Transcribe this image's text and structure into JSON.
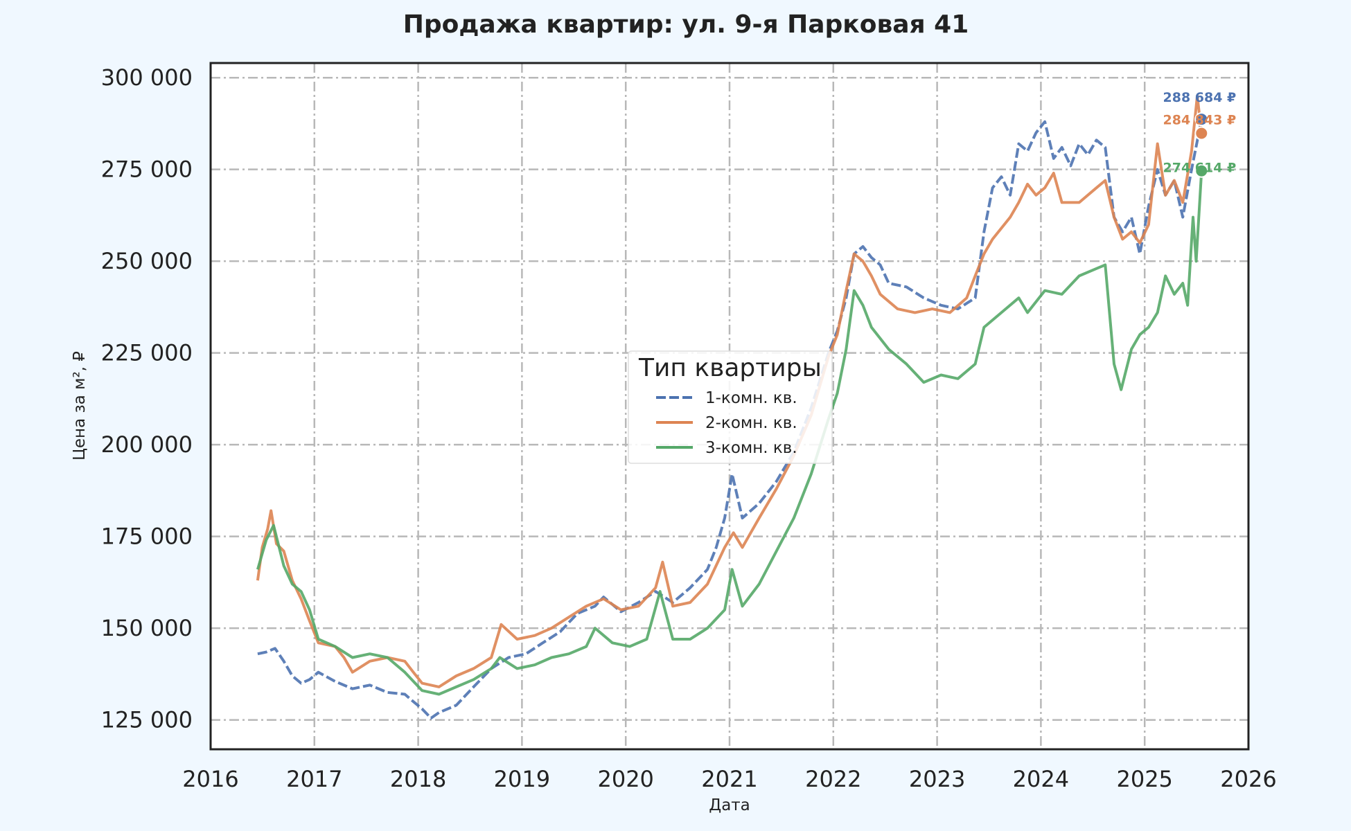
{
  "chart_data": {
    "type": "line",
    "title": "Продажа квартир: ул. 9-я Парковая 41",
    "xlabel": "Дата",
    "ylabel": "Цена за м², ₽",
    "xlim": [
      2016,
      2026
    ],
    "ylim": [
      117000,
      304000
    ],
    "x_ticks": [
      2016,
      2017,
      2018,
      2019,
      2020,
      2021,
      2022,
      2023,
      2024,
      2025,
      2026
    ],
    "x_tick_labels": [
      "2016",
      "2017",
      "2018",
      "2019",
      "2020",
      "2021",
      "2022",
      "2023",
      "2024",
      "2025",
      "2026"
    ],
    "y_ticks": [
      125000,
      150000,
      175000,
      200000,
      225000,
      250000,
      275000,
      300000
    ],
    "y_tick_labels": [
      "125 000",
      "150 000",
      "175 000",
      "200 000",
      "225 000",
      "250 000",
      "275 000",
      "300 000"
    ],
    "grid": true,
    "legend": {
      "title": "Тип квартиры",
      "position": "center"
    },
    "series": [
      {
        "name": "1-комн. кв.",
        "color": "#4c72b0",
        "dash": "dashed",
        "end_label": "288 684 ₽",
        "end_value": 288684,
        "points": [
          [
            "2016-06-15",
            143000
          ],
          [
            "2016-07-15",
            143500
          ],
          [
            "2016-08-15",
            144500
          ],
          [
            "2016-09-15",
            141000
          ],
          [
            "2016-10-15",
            137000
          ],
          [
            "2016-11-15",
            135000
          ],
          [
            "2016-12-15",
            136000
          ],
          [
            "2017-01-15",
            138000
          ],
          [
            "2017-03-15",
            135500
          ],
          [
            "2017-05-15",
            133500
          ],
          [
            "2017-07-15",
            134500
          ],
          [
            "2017-09-15",
            132500
          ],
          [
            "2017-11-15",
            132000
          ],
          [
            "2017-12-15",
            130000
          ],
          [
            "2018-01-15",
            128000
          ],
          [
            "2018-02-15",
            125500
          ],
          [
            "2018-03-15",
            127000
          ],
          [
            "2018-05-15",
            129000
          ],
          [
            "2018-07-15",
            134000
          ],
          [
            "2018-09-15",
            139000
          ],
          [
            "2018-11-15",
            142000
          ],
          [
            "2019-01-15",
            143000
          ],
          [
            "2019-03-15",
            146000
          ],
          [
            "2019-05-15",
            149000
          ],
          [
            "2019-07-15",
            154000
          ],
          [
            "2019-09-15",
            156000
          ],
          [
            "2019-10-15",
            158500
          ],
          [
            "2019-12-15",
            154500
          ],
          [
            "2020-02-15",
            157000
          ],
          [
            "2020-04-15",
            160000
          ],
          [
            "2020-06-15",
            157000
          ],
          [
            "2020-08-15",
            161000
          ],
          [
            "2020-10-15",
            166000
          ],
          [
            "2020-11-15",
            172000
          ],
          [
            "2020-12-15",
            180000
          ],
          [
            "2021-01-10",
            192000
          ],
          [
            "2021-02-15",
            180000
          ],
          [
            "2021-04-15",
            184000
          ],
          [
            "2021-06-15",
            190000
          ],
          [
            "2021-08-15",
            198000
          ],
          [
            "2021-10-15",
            210000
          ],
          [
            "2021-12-15",
            225000
          ],
          [
            "2022-01-15",
            231000
          ],
          [
            "2022-02-15",
            240000
          ],
          [
            "2022-03-15",
            252000
          ],
          [
            "2022-04-15",
            254000
          ],
          [
            "2022-05-15",
            251000
          ],
          [
            "2022-06-15",
            249000
          ],
          [
            "2022-07-15",
            244000
          ],
          [
            "2022-09-15",
            243000
          ],
          [
            "2022-11-15",
            240000
          ],
          [
            "2023-01-15",
            238000
          ],
          [
            "2023-03-15",
            237000
          ],
          [
            "2023-05-15",
            240000
          ],
          [
            "2023-06-15",
            258000
          ],
          [
            "2023-07-15",
            270000
          ],
          [
            "2023-08-15",
            273000
          ],
          [
            "2023-09-15",
            268000
          ],
          [
            "2023-10-15",
            282000
          ],
          [
            "2023-11-15",
            280000
          ],
          [
            "2023-12-15",
            285000
          ],
          [
            "2024-01-15",
            288000
          ],
          [
            "2024-02-15",
            278000
          ],
          [
            "2024-03-15",
            281000
          ],
          [
            "2024-04-15",
            276000
          ],
          [
            "2024-05-15",
            282000
          ],
          [
            "2024-06-15",
            279000
          ],
          [
            "2024-07-15",
            283000
          ],
          [
            "2024-08-15",
            281000
          ],
          [
            "2024-09-15",
            262000
          ],
          [
            "2024-10-15",
            258000
          ],
          [
            "2024-11-15",
            262000
          ],
          [
            "2024-12-15",
            252000
          ],
          [
            "2025-01-15",
            265000
          ],
          [
            "2025-02-15",
            275000
          ],
          [
            "2025-03-15",
            268000
          ],
          [
            "2025-04-15",
            272000
          ],
          [
            "2025-05-15",
            262000
          ],
          [
            "2025-06-15",
            275000
          ],
          [
            "2025-07-20",
            288684
          ]
        ]
      },
      {
        "name": "2-комн. кв.",
        "color": "#dd8452",
        "dash": "solid",
        "end_label": "284 843 ₽",
        "end_value": 284843,
        "points": [
          [
            "2016-06-15",
            163000
          ],
          [
            "2016-07-01",
            172000
          ],
          [
            "2016-07-20",
            177000
          ],
          [
            "2016-08-01",
            182000
          ],
          [
            "2016-08-20",
            173000
          ],
          [
            "2016-09-15",
            171000
          ],
          [
            "2016-10-15",
            163000
          ],
          [
            "2016-11-15",
            158000
          ],
          [
            "2016-12-15",
            152000
          ],
          [
            "2017-01-15",
            146000
          ],
          [
            "2017-03-15",
            145000
          ],
          [
            "2017-04-15",
            142000
          ],
          [
            "2017-05-15",
            138000
          ],
          [
            "2017-07-15",
            141000
          ],
          [
            "2017-09-15",
            142000
          ],
          [
            "2017-11-15",
            141000
          ],
          [
            "2017-12-15",
            138000
          ],
          [
            "2018-01-15",
            135000
          ],
          [
            "2018-03-15",
            134000
          ],
          [
            "2018-05-15",
            137000
          ],
          [
            "2018-07-15",
            139000
          ],
          [
            "2018-09-15",
            142000
          ],
          [
            "2018-10-20",
            151000
          ],
          [
            "2018-12-15",
            147000
          ],
          [
            "2019-02-15",
            148000
          ],
          [
            "2019-04-15",
            150000
          ],
          [
            "2019-06-15",
            153000
          ],
          [
            "2019-08-15",
            156000
          ],
          [
            "2019-10-15",
            158000
          ],
          [
            "2019-12-15",
            155000
          ],
          [
            "2020-02-15",
            156000
          ],
          [
            "2020-04-15",
            161000
          ],
          [
            "2020-05-10",
            168000
          ],
          [
            "2020-06-15",
            156000
          ],
          [
            "2020-08-15",
            157000
          ],
          [
            "2020-10-15",
            162000
          ],
          [
            "2020-12-15",
            172000
          ],
          [
            "2021-01-15",
            176000
          ],
          [
            "2021-02-15",
            172000
          ],
          [
            "2021-04-15",
            180000
          ],
          [
            "2021-06-15",
            188000
          ],
          [
            "2021-08-15",
            197000
          ],
          [
            "2021-10-15",
            208000
          ],
          [
            "2021-12-15",
            224000
          ],
          [
            "2022-01-15",
            230000
          ],
          [
            "2022-02-15",
            242000
          ],
          [
            "2022-03-15",
            252000
          ],
          [
            "2022-04-15",
            250000
          ],
          [
            "2022-05-15",
            246000
          ],
          [
            "2022-06-15",
            241000
          ],
          [
            "2022-08-15",
            237000
          ],
          [
            "2022-10-15",
            236000
          ],
          [
            "2022-12-15",
            237000
          ],
          [
            "2023-02-15",
            236000
          ],
          [
            "2023-04-15",
            240000
          ],
          [
            "2023-05-15",
            246000
          ],
          [
            "2023-06-15",
            252000
          ],
          [
            "2023-07-15",
            256000
          ],
          [
            "2023-09-15",
            262000
          ],
          [
            "2023-10-15",
            266000
          ],
          [
            "2023-11-15",
            271000
          ],
          [
            "2023-12-15",
            268000
          ],
          [
            "2024-01-15",
            270000
          ],
          [
            "2024-02-15",
            274000
          ],
          [
            "2024-03-15",
            266000
          ],
          [
            "2024-05-15",
            266000
          ],
          [
            "2024-07-15",
            270000
          ],
          [
            "2024-08-15",
            272000
          ],
          [
            "2024-09-15",
            262000
          ],
          [
            "2024-10-15",
            256000
          ],
          [
            "2024-11-15",
            258000
          ],
          [
            "2024-12-15",
            255000
          ],
          [
            "2025-01-15",
            260000
          ],
          [
            "2025-02-15",
            282000
          ],
          [
            "2025-03-15",
            268000
          ],
          [
            "2025-04-15",
            272000
          ],
          [
            "2025-05-15",
            266000
          ],
          [
            "2025-06-15",
            280000
          ],
          [
            "2025-07-05",
            295000
          ],
          [
            "2025-07-20",
            284843
          ]
        ]
      },
      {
        "name": "3-комн. кв.",
        "color": "#55a868",
        "dash": "solid",
        "end_label": "274 614 ₽",
        "end_value": 274614,
        "points": [
          [
            "2016-06-15",
            166000
          ],
          [
            "2016-07-15",
            174000
          ],
          [
            "2016-08-10",
            178000
          ],
          [
            "2016-09-15",
            167000
          ],
          [
            "2016-10-15",
            162000
          ],
          [
            "2016-11-15",
            160000
          ],
          [
            "2016-12-15",
            155000
          ],
          [
            "2017-01-15",
            147000
          ],
          [
            "2017-03-15",
            145000
          ],
          [
            "2017-05-15",
            142000
          ],
          [
            "2017-07-15",
            143000
          ],
          [
            "2017-09-15",
            142000
          ],
          [
            "2017-11-15",
            138000
          ],
          [
            "2018-01-15",
            133000
          ],
          [
            "2018-03-15",
            132000
          ],
          [
            "2018-05-15",
            134000
          ],
          [
            "2018-07-15",
            136000
          ],
          [
            "2018-09-15",
            139000
          ],
          [
            "2018-10-15",
            142000
          ],
          [
            "2018-12-15",
            139000
          ],
          [
            "2019-02-15",
            140000
          ],
          [
            "2019-04-15",
            142000
          ],
          [
            "2019-06-15",
            143000
          ],
          [
            "2019-08-15",
            145000
          ],
          [
            "2019-09-15",
            150000
          ],
          [
            "2019-11-15",
            146000
          ],
          [
            "2020-01-15",
            145000
          ],
          [
            "2020-03-15",
            147000
          ],
          [
            "2020-05-01",
            160000
          ],
          [
            "2020-06-15",
            147000
          ],
          [
            "2020-08-15",
            147000
          ],
          [
            "2020-10-15",
            150000
          ],
          [
            "2020-12-15",
            155000
          ],
          [
            "2021-01-10",
            166000
          ],
          [
            "2021-02-15",
            156000
          ],
          [
            "2021-04-15",
            162000
          ],
          [
            "2021-06-15",
            171000
          ],
          [
            "2021-08-15",
            180000
          ],
          [
            "2021-10-15",
            192000
          ],
          [
            "2021-12-15",
            207000
          ],
          [
            "2022-01-15",
            214000
          ],
          [
            "2022-02-15",
            226000
          ],
          [
            "2022-03-15",
            242000
          ],
          [
            "2022-04-15",
            238000
          ],
          [
            "2022-05-15",
            232000
          ],
          [
            "2022-07-15",
            226000
          ],
          [
            "2022-09-15",
            222000
          ],
          [
            "2022-11-15",
            217000
          ],
          [
            "2023-01-15",
            219000
          ],
          [
            "2023-03-15",
            218000
          ],
          [
            "2023-05-15",
            222000
          ],
          [
            "2023-06-15",
            232000
          ],
          [
            "2023-08-15",
            236000
          ],
          [
            "2023-10-15",
            240000
          ],
          [
            "2023-11-15",
            236000
          ],
          [
            "2024-01-15",
            242000
          ],
          [
            "2024-03-15",
            241000
          ],
          [
            "2024-05-15",
            246000
          ],
          [
            "2024-07-15",
            248000
          ],
          [
            "2024-08-15",
            249000
          ],
          [
            "2024-09-15",
            222000
          ],
          [
            "2024-10-10",
            215000
          ],
          [
            "2024-11-15",
            226000
          ],
          [
            "2024-12-15",
            230000
          ],
          [
            "2025-01-15",
            232000
          ],
          [
            "2025-02-15",
            236000
          ],
          [
            "2025-03-15",
            246000
          ],
          [
            "2025-04-15",
            241000
          ],
          [
            "2025-05-15",
            244000
          ],
          [
            "2025-06-01",
            238000
          ],
          [
            "2025-06-20",
            262000
          ],
          [
            "2025-07-01",
            250000
          ],
          [
            "2025-07-20",
            274614
          ]
        ]
      }
    ]
  }
}
